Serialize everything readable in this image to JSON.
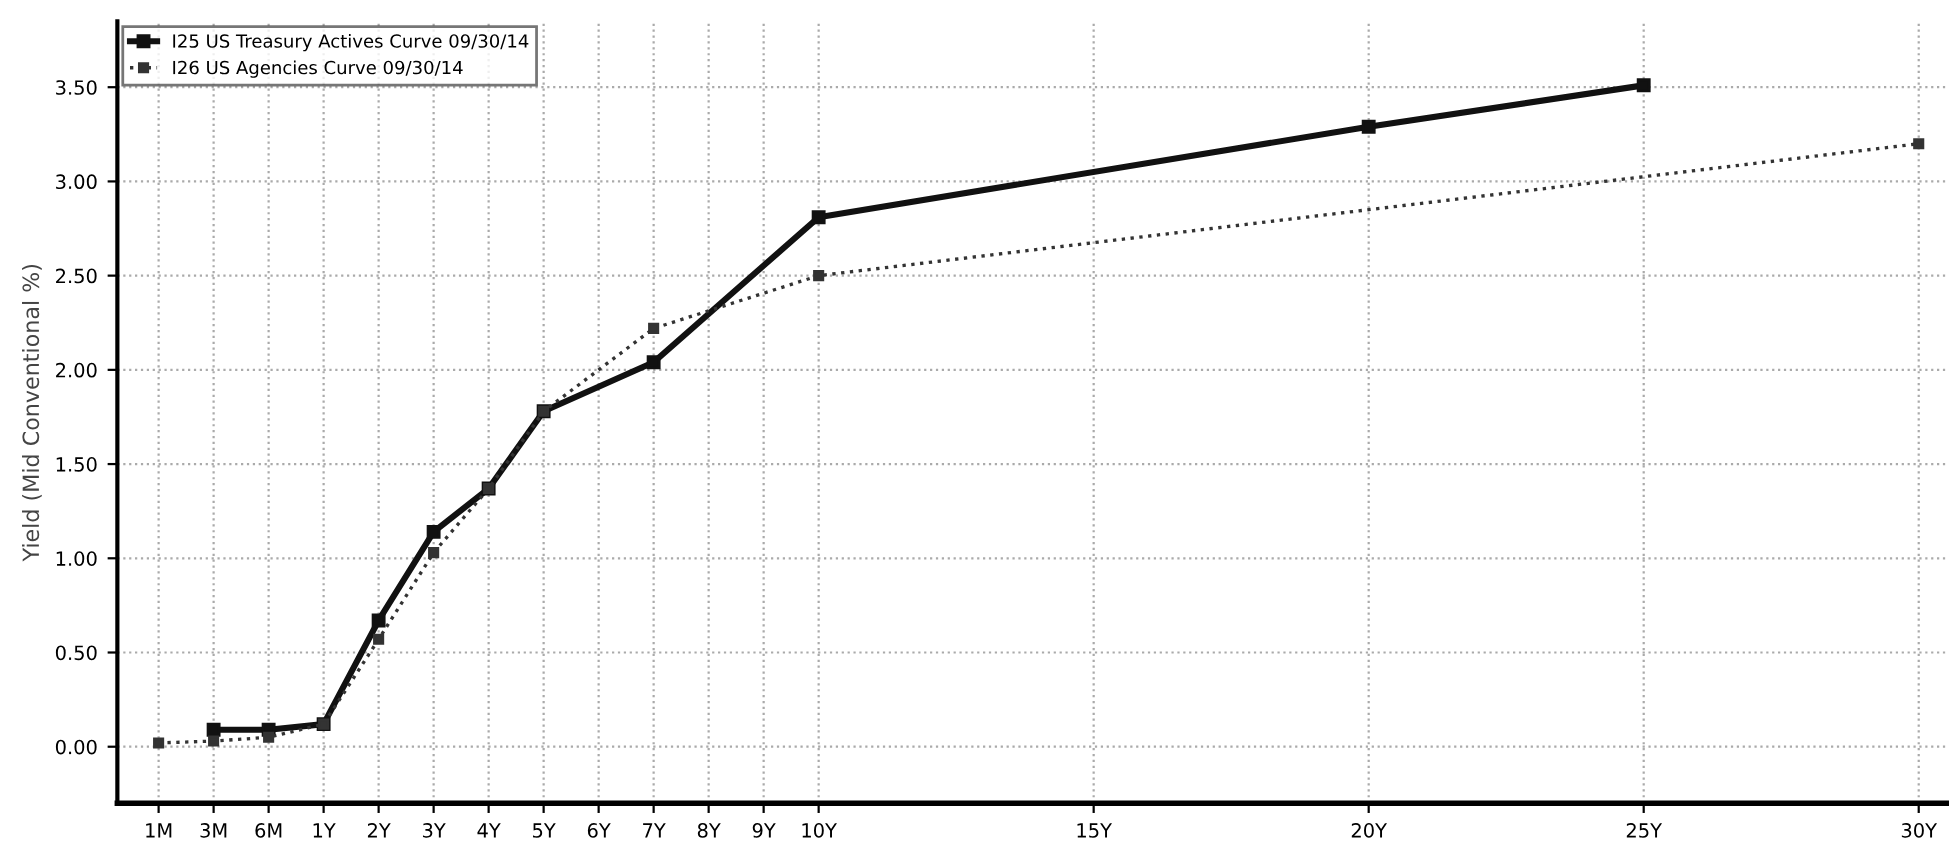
{
  "chart_data": {
    "type": "line",
    "ylabel": "Yield (Mid Conventional %)",
    "categories": [
      "1M",
      "3M",
      "6M",
      "1Y",
      "2Y",
      "3Y",
      "4Y",
      "5Y",
      "6Y",
      "7Y",
      "8Y",
      "9Y",
      "10Y",
      null,
      null,
      null,
      null,
      "15Y",
      null,
      null,
      null,
      null,
      "20Y",
      null,
      null,
      null,
      null,
      "25Y",
      null,
      null,
      null,
      null,
      "30Y"
    ],
    "series": [
      {
        "name": "I25 US Treasury Actives Curve 09/30/14",
        "color": "#111111",
        "line_style": "solid",
        "values": [
          null,
          0.09,
          0.09,
          0.12,
          0.67,
          1.14,
          1.37,
          1.78,
          null,
          2.04,
          null,
          null,
          2.81,
          null,
          null,
          null,
          null,
          null,
          null,
          null,
          null,
          null,
          3.29,
          null,
          null,
          null,
          null,
          3.51,
          null,
          null,
          null,
          null,
          null
        ]
      },
      {
        "name": "I26 US Agencies Curve 09/30/14",
        "color": "#333333",
        "line_style": "dotted",
        "values": [
          0.02,
          0.03,
          0.05,
          0.12,
          0.57,
          1.03,
          1.37,
          1.78,
          null,
          2.22,
          null,
          null,
          2.5,
          null,
          null,
          null,
          null,
          null,
          null,
          null,
          null,
          null,
          null,
          null,
          null,
          null,
          null,
          null,
          null,
          null,
          null,
          null,
          3.2
        ]
      }
    ],
    "ylim": [
      -0.3,
      3.85
    ],
    "yticks": [
      {
        "value": 0,
        "label": "0.00"
      },
      {
        "value": 0.5,
        "label": "0.50"
      },
      {
        "value": 1,
        "label": "1.00"
      },
      {
        "value": 1.5,
        "label": "1.50"
      },
      {
        "value": 2,
        "label": "2.00"
      },
      {
        "value": 2.5,
        "label": "2.50"
      },
      {
        "value": 3,
        "label": "3.00"
      },
      {
        "value": 3.5,
        "label": "3.50"
      }
    ],
    "grid": true,
    "legend": "top left",
    "marker": "square"
  }
}
